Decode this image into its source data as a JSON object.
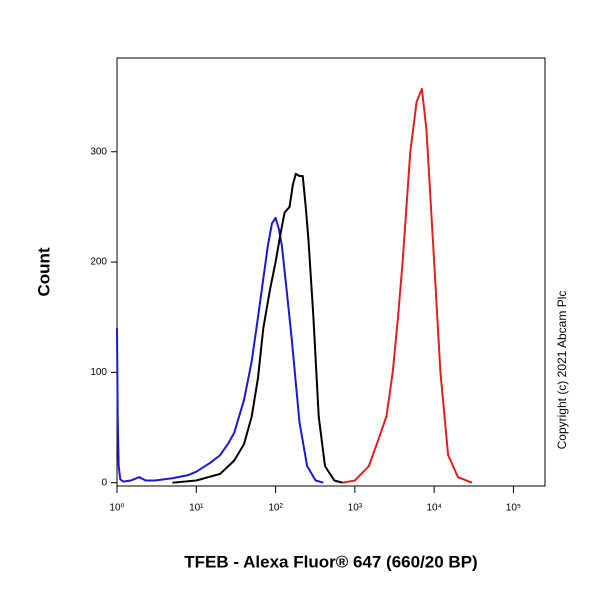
{
  "chart_data": {
    "type": "line",
    "x_label": "TFEB - Alexa Fluor® 647 (660/20 BP)",
    "y_label": "Count",
    "annotation": "Copyright (c) 2021 Abcam Plc",
    "xscale": "log",
    "xlim": [
      1,
      250000
    ],
    "ylim": [
      -3,
      385
    ],
    "xticks": [
      {
        "value": 1,
        "label": "10⁰"
      },
      {
        "value": 10,
        "label": "10¹"
      },
      {
        "value": 100,
        "label": "10²"
      },
      {
        "value": 1000,
        "label": "10³"
      },
      {
        "value": 10000,
        "label": "10⁴"
      },
      {
        "value": 100000,
        "label": "10⁵"
      }
    ],
    "yticks": [
      0,
      100,
      200,
      300
    ],
    "series": [
      {
        "color": "#1a1ad0",
        "x": [
          1,
          1.02,
          1.05,
          1.1,
          1.2,
          1.5,
          1.9,
          2.3,
          3,
          5,
          8,
          10,
          15,
          20,
          25,
          30,
          40,
          50,
          60,
          70,
          80,
          90,
          100,
          110,
          120,
          140,
          160,
          200,
          250,
          320,
          400
        ],
        "values": [
          140,
          60,
          15,
          3,
          1,
          2,
          5,
          2,
          2,
          4,
          7,
          10,
          18,
          25,
          35,
          45,
          75,
          110,
          150,
          185,
          215,
          235,
          240,
          230,
          215,
          170,
          130,
          55,
          15,
          2,
          0
        ]
      },
      {
        "color": "#000000",
        "x": [
          5,
          10,
          20,
          30,
          40,
          50,
          60,
          70,
          85,
          100,
          115,
          130,
          150,
          165,
          180,
          200,
          220,
          240,
          260,
          300,
          350,
          420,
          550,
          700
        ],
        "values": [
          0,
          2,
          8,
          20,
          35,
          60,
          95,
          140,
          175,
          200,
          225,
          245,
          250,
          270,
          280,
          278,
          278,
          250,
          220,
          150,
          60,
          15,
          2,
          0
        ]
      },
      {
        "color": "#e02020",
        "x": [
          700,
          1000,
          1500,
          2000,
          2500,
          3000,
          3500,
          4000,
          5000,
          6000,
          7000,
          8000,
          10000,
          12000,
          15000,
          20000,
          30000
        ],
        "values": [
          0,
          2,
          15,
          40,
          60,
          100,
          150,
          200,
          300,
          345,
          357,
          320,
          200,
          100,
          25,
          5,
          0
        ]
      }
    ]
  }
}
